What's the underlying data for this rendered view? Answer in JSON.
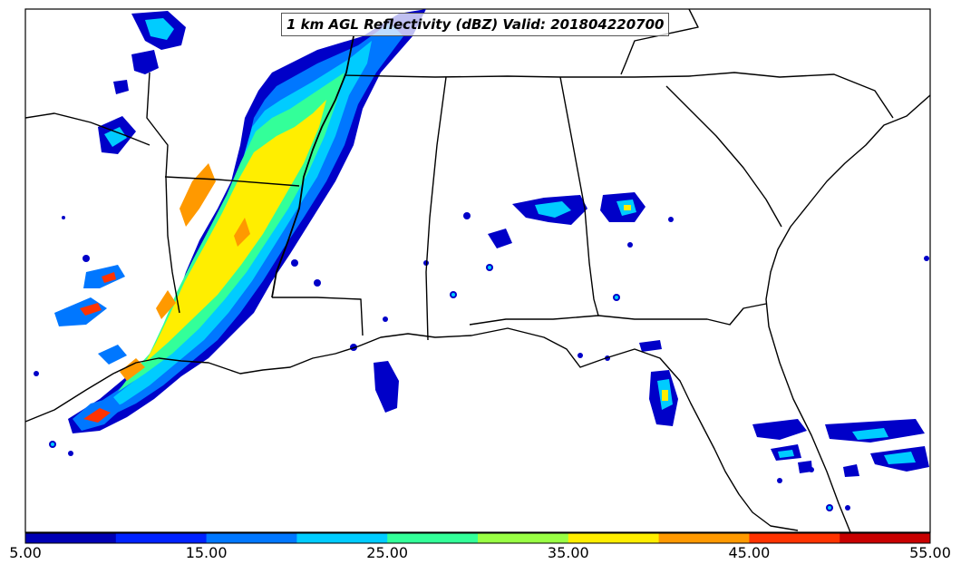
{
  "map": {
    "title": "1 km AGL Reflectivity (dBZ) Valid: 201804220700",
    "colorbar": {
      "tick_labels": [
        "5.00",
        "15.00",
        "25.00",
        "35.00",
        "45.00",
        "55.00"
      ],
      "colors": [
        "#0000b4",
        "#0022ff",
        "#0077ff",
        "#00ccff",
        "#33ff99",
        "#99ff44",
        "#ffee00",
        "#ff9900",
        "#ff3300",
        "#c80000"
      ]
    }
  }
}
